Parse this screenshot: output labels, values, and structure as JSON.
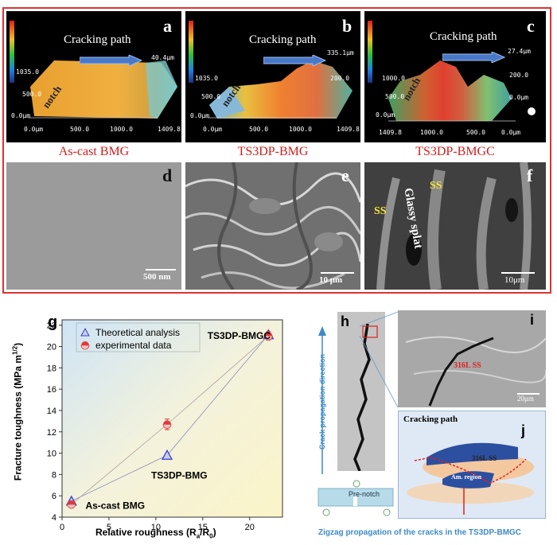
{
  "panels": {
    "a": {
      "label": "a",
      "title": "Cracking path",
      "notch": "notch",
      "caption": "As-cast BMG",
      "z_top": "1035.0",
      "z_mid": "500.0",
      "z_bot": "0.0μm",
      "x0": "0.0μm",
      "x1": "500.0",
      "x2": "1000.0",
      "x3": "1409.8",
      "peak": "40.4μm"
    },
    "b": {
      "label": "b",
      "title": "Cracking path",
      "notch": "notch",
      "caption": "TS3DP-BMG",
      "z_top": "1035.0",
      "z_mid": "500.0",
      "z_bot": "0.0μm",
      "x0": "0.0μm",
      "x1": "500.0",
      "x2": "1000.0",
      "x3": "1409.8",
      "peak": "335.1μm",
      "p2": "200.0"
    },
    "c": {
      "label": "c",
      "title": "Cracking path",
      "notch": "notch",
      "caption": "TS3DP-BMGC",
      "z_top": "1000.0",
      "z_mid": "500.0",
      "z_bot": "0.0μm",
      "x0": "1409.8",
      "x1": "1000.0",
      "x2": "500.0",
      "x3": "0.0μm",
      "peak": "27.4μm",
      "p2": "200.0",
      "p3": "0.0μm"
    },
    "d": {
      "label": "d",
      "scale": "500 nm"
    },
    "e": {
      "label": "e",
      "scale": "10 μm"
    },
    "f": {
      "label": "f",
      "scale": "10μm",
      "ss1": "SS",
      "ss2": "SS",
      "glassy": "Glassy splat"
    },
    "h": {
      "label": "h",
      "crack_dir": "Crack propagation direction",
      "prenotch": "Pre-notch"
    },
    "i": {
      "label": "i",
      "ss": "316L SS",
      "scale": "20μm"
    },
    "j": {
      "label": "j",
      "title": "Cracking path",
      "ss": "316L SS",
      "am": "Am. region"
    },
    "bottom_caption": "Zigzag propagation of the cracks in the TS3DP-BMGC"
  },
  "chart_data": {
    "type": "line",
    "label": "g",
    "xlabel": "Relative roughness (R",
    "xlabel_sub": "a",
    "xlabel_mid": "/R",
    "xlabel_sub2": "0",
    "xlabel_end": ")",
    "ylabel": "Fracture toughness (MPa m",
    "ylabel_sup": "1/2",
    "ylabel_end": ")",
    "xlim": [
      0,
      23.5
    ],
    "ylim": [
      4,
      22.5
    ],
    "xticks": [
      "0",
      "5",
      "10",
      "15",
      "20"
    ],
    "yticks": [
      "4",
      "6",
      "8",
      "10",
      "12",
      "14",
      "16",
      "18",
      "20",
      "22"
    ],
    "series": [
      {
        "name": "Theoretical analysis",
        "color": "#3a3ec8",
        "marker": "triangle",
        "x": [
          1.0,
          11.2,
          22.0
        ],
        "y": [
          5.5,
          9.8,
          21.1
        ]
      },
      {
        "name": "experimental data",
        "color": "#e03a3a",
        "marker": "circle-half",
        "x": [
          1.0,
          11.2,
          22.0
        ],
        "y": [
          5.2,
          12.7,
          21.0
        ],
        "err": [
          0.3,
          0.5,
          0.4
        ]
      }
    ],
    "annotations": [
      {
        "text": "As-cast BMG",
        "x": 2.5,
        "y": 4.8
      },
      {
        "text": "TS3DP-BMG",
        "x": 9.5,
        "y": 7.6
      },
      {
        "text": "TS3DP-BMGC",
        "x": 15.5,
        "y": 20.7
      }
    ],
    "legend_position": "top-left"
  }
}
